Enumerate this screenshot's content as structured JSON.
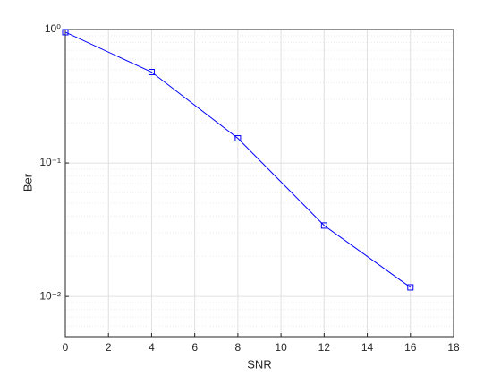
{
  "chart_data": {
    "type": "line",
    "xlabel": "SNR",
    "ylabel": "Ber",
    "x": [
      0,
      4,
      8,
      12,
      16
    ],
    "series": [
      {
        "color": "#0000ff",
        "marker": "square",
        "values": [
          0.955,
          0.48,
          0.153,
          0.034,
          0.0117
        ]
      }
    ],
    "xlim": [
      0,
      18
    ],
    "xticks": [
      0,
      2,
      4,
      6,
      8,
      10,
      12,
      14,
      16,
      18
    ],
    "ylim": [
      0.005,
      1
    ],
    "yscale": "log",
    "yticks": [
      {
        "value": 0.01,
        "label": "10⁻²"
      },
      {
        "value": 0.1,
        "label": "10⁻¹"
      },
      {
        "value": 1,
        "label": "10⁰"
      }
    ],
    "grid": true,
    "minor_grid": true
  }
}
